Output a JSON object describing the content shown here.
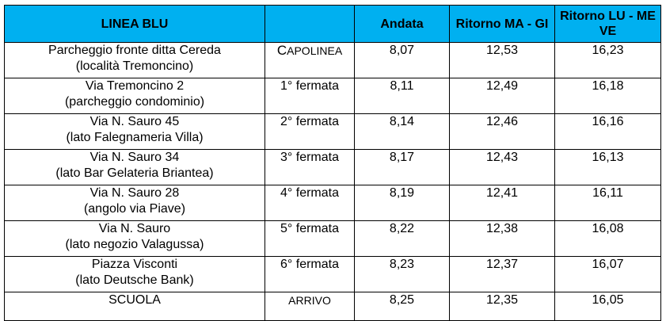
{
  "table": {
    "headers": {
      "line_name": "LINEA BLU",
      "blank": "",
      "andata": "Andata",
      "ritorno_ma_gi": "Ritorno MA - GI",
      "ritorno_lu_me_ve": "Ritorno LU - ME VE"
    },
    "rows": [
      {
        "stop_line1": "Parcheggio fronte ditta Cereda",
        "stop_line2": "(località Tremoncino)",
        "fermata_first": "C",
        "fermata_rest": "APOLINEA",
        "andata": "8,07",
        "ritorno_ma_gi": "12,53",
        "ritorno_lu_me_ve": "16,23"
      },
      {
        "stop_line1": "Via Tremoncino 2",
        "stop_line2": "(parcheggio condominio)",
        "fermata": "1° fermata",
        "andata": "8,11",
        "ritorno_ma_gi": "12,49",
        "ritorno_lu_me_ve": "16,18"
      },
      {
        "stop_line1": "Via N. Sauro 45",
        "stop_line2": "(lato Falegnameria Villa)",
        "fermata": "2° fermata",
        "andata": "8,14",
        "ritorno_ma_gi": "12,46",
        "ritorno_lu_me_ve": "16,16"
      },
      {
        "stop_line1": "Via N. Sauro 34",
        "stop_line2": "(lato Bar Gelateria Briantea)",
        "fermata": "3° fermata",
        "andata": "8,17",
        "ritorno_ma_gi": "12,43",
        "ritorno_lu_me_ve": "16,13"
      },
      {
        "stop_line1": "Via N. Sauro 28",
        "stop_line2": "(angolo via Piave)",
        "fermata": "4° fermata",
        "andata": "8,19",
        "ritorno_ma_gi": "12,41",
        "ritorno_lu_me_ve": "16,11"
      },
      {
        "stop_line1": "Via N. Sauro",
        "stop_line2": "(lato negozio Valagussa)",
        "fermata": "5° fermata",
        "andata": "8,22",
        "ritorno_ma_gi": "12,38",
        "ritorno_lu_me_ve": "16,08"
      },
      {
        "stop_line1": "Piazza Visconti",
        "stop_line2": "(lato Deutsche Bank)",
        "fermata": "6° fermata",
        "andata": "8,23",
        "ritorno_ma_gi": "12,37",
        "ritorno_lu_me_ve": "16,07"
      },
      {
        "stop_line1": "SCUOLA",
        "stop_line2": "",
        "fermata": "ARRIVO",
        "andata": "8,25",
        "ritorno_ma_gi": "12,35",
        "ritorno_lu_me_ve": "16,05"
      }
    ]
  },
  "colors": {
    "header_bg": "#00b0f0",
    "border": "#000000"
  }
}
